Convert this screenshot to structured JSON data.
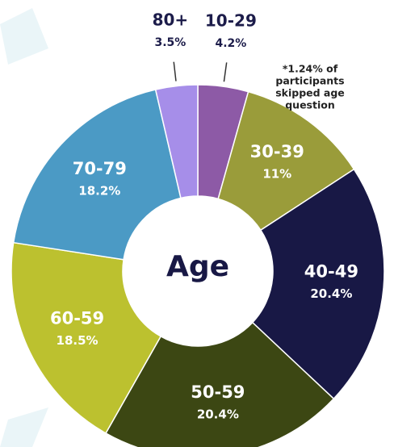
{
  "chart_data": {
    "type": "donut",
    "center_label": "Age",
    "categories": [
      "10-29",
      "30-39",
      "40-49",
      "50-59",
      "60-59",
      "70-79",
      "80+"
    ],
    "values": [
      4.2,
      11,
      20.4,
      20.4,
      18.5,
      18.2,
      3.5
    ],
    "value_labels": [
      "4.2%",
      "11%",
      "20.4%",
      "20.4%",
      "18.5%",
      "18.2%",
      "3.5%"
    ],
    "colors": [
      "#8d5aa6",
      "#9a9c3a",
      "#181845",
      "#3c4713",
      "#bcc12f",
      "#4b9ac5",
      "#a68ee9"
    ],
    "annotation": [
      "*1.24% of",
      "participants",
      "skipped age",
      "question"
    ]
  }
}
